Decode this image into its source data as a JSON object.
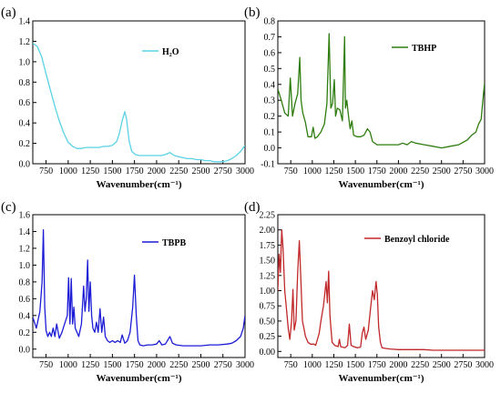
{
  "chart_data": [
    {
      "type": "line",
      "panel_label": "(a)",
      "xlabel": "Wavenumber(cm⁻¹)",
      "ylabel": "",
      "xlim": [
        600,
        3000
      ],
      "ylim": [
        0.0,
        1.4
      ],
      "xticks": [
        750,
        1000,
        1250,
        1500,
        1750,
        2000,
        2250,
        2500,
        2750,
        3000
      ],
      "yticks": [
        0.0,
        0.2,
        0.4,
        0.6,
        0.8,
        1.0,
        1.2,
        1.4
      ],
      "ytick_labels": [
        "0.0",
        "0.2",
        "0.4",
        "0.6",
        "0.8",
        "1.0",
        "1.2",
        "1.4"
      ],
      "legend": "top-right",
      "series": [
        {
          "name": "H₂O",
          "color": "#5bd2e6",
          "x": [
            600,
            650,
            700,
            750,
            800,
            850,
            900,
            950,
            1000,
            1050,
            1100,
            1150,
            1200,
            1250,
            1300,
            1350,
            1400,
            1450,
            1500,
            1550,
            1580,
            1610,
            1640,
            1660,
            1690,
            1720,
            1760,
            1800,
            1850,
            1900,
            1950,
            2000,
            2050,
            2100,
            2150,
            2200,
            2250,
            2300,
            2350,
            2400,
            2450,
            2500,
            2550,
            2600,
            2650,
            2700,
            2750,
            2800,
            2850,
            2900,
            2950,
            3000
          ],
          "y": [
            1.18,
            1.15,
            1.05,
            0.88,
            0.72,
            0.56,
            0.42,
            0.3,
            0.21,
            0.17,
            0.15,
            0.15,
            0.16,
            0.16,
            0.16,
            0.16,
            0.17,
            0.17,
            0.18,
            0.22,
            0.3,
            0.42,
            0.51,
            0.44,
            0.22,
            0.12,
            0.09,
            0.08,
            0.08,
            0.08,
            0.08,
            0.08,
            0.08,
            0.09,
            0.11,
            0.08,
            0.07,
            0.06,
            0.05,
            0.05,
            0.04,
            0.04,
            0.03,
            0.03,
            0.02,
            0.02,
            0.02,
            0.03,
            0.05,
            0.08,
            0.12,
            0.18
          ]
        }
      ]
    },
    {
      "type": "line",
      "panel_label": "(b)",
      "xlabel": "Wavenumber(cm⁻¹)",
      "ylabel": "",
      "xlim": [
        600,
        3000
      ],
      "ylim": [
        -0.1,
        0.8
      ],
      "xticks": [
        750,
        1000,
        1250,
        1500,
        1750,
        2000,
        2250,
        2500,
        2750,
        3000
      ],
      "yticks": [
        -0.1,
        0.0,
        0.1,
        0.2,
        0.3,
        0.4,
        0.5,
        0.6,
        0.7,
        0.8
      ],
      "ytick_labels": [
        "-0.1",
        "0.0",
        "0.1",
        "0.2",
        "0.3",
        "0.4",
        "0.5",
        "0.6",
        "0.7",
        "0.8"
      ],
      "legend": "top-right",
      "series": [
        {
          "name": "TBHP",
          "color": "#2e7d0f",
          "x": [
            600,
            640,
            680,
            720,
            745,
            770,
            800,
            830,
            855,
            870,
            890,
            920,
            950,
            990,
            1010,
            1030,
            1060,
            1100,
            1140,
            1170,
            1195,
            1215,
            1235,
            1255,
            1270,
            1290,
            1320,
            1350,
            1375,
            1385,
            1400,
            1420,
            1440,
            1460,
            1480,
            1520,
            1560,
            1600,
            1640,
            1670,
            1700,
            1750,
            1800,
            1900,
            2000,
            2050,
            2100,
            2150,
            2200,
            2300,
            2400,
            2500,
            2600,
            2700,
            2800,
            2850,
            2900,
            2930,
            2960,
            2980,
            3000
          ],
          "y": [
            0.37,
            0.3,
            0.22,
            0.2,
            0.44,
            0.2,
            0.28,
            0.34,
            0.57,
            0.3,
            0.22,
            0.16,
            0.07,
            0.07,
            0.13,
            0.06,
            0.07,
            0.1,
            0.15,
            0.28,
            0.72,
            0.25,
            0.28,
            0.43,
            0.2,
            0.25,
            0.24,
            0.17,
            0.7,
            0.25,
            0.3,
            0.2,
            0.12,
            0.17,
            0.08,
            0.07,
            0.07,
            0.08,
            0.12,
            0.1,
            0.04,
            0.02,
            0.02,
            0.02,
            0.02,
            0.03,
            0.02,
            0.04,
            0.03,
            0.02,
            0.01,
            0.0,
            0.01,
            0.02,
            0.05,
            0.08,
            0.1,
            0.15,
            0.18,
            0.3,
            0.41
          ]
        }
      ]
    },
    {
      "type": "line",
      "panel_label": "(c)",
      "xlabel": "Wavenumber(cm⁻¹)",
      "ylabel": "",
      "xlim": [
        600,
        3000
      ],
      "ylim": [
        -0.1,
        1.6
      ],
      "xticks": [
        750,
        1000,
        1250,
        1500,
        1750,
        2000,
        2250,
        2500,
        2750,
        3000
      ],
      "yticks": [
        0.0,
        0.2,
        0.4,
        0.6,
        0.8,
        1.0,
        1.2,
        1.4,
        1.6
      ],
      "ytick_labels": [
        "0.0",
        "0.2",
        "0.4",
        "0.6",
        "0.8",
        "1.0",
        "1.2",
        "1.4",
        "1.6"
      ],
      "legend": "top-right",
      "series": [
        {
          "name": "TBPB",
          "color": "#1c1cd6",
          "x": [
            600,
            640,
            680,
            705,
            720,
            735,
            750,
            770,
            790,
            810,
            830,
            850,
            870,
            900,
            930,
            960,
            990,
            1005,
            1020,
            1035,
            1050,
            1065,
            1080,
            1100,
            1120,
            1150,
            1175,
            1190,
            1205,
            1220,
            1235,
            1250,
            1265,
            1280,
            1300,
            1320,
            1340,
            1360,
            1380,
            1400,
            1420,
            1445,
            1470,
            1500,
            1530,
            1560,
            1590,
            1610,
            1640,
            1670,
            1700,
            1730,
            1750,
            1770,
            1790,
            1810,
            1850,
            1900,
            1950,
            2000,
            2030,
            2060,
            2100,
            2150,
            2180,
            2220,
            2300,
            2400,
            2500,
            2600,
            2700,
            2800,
            2850,
            2900,
            2950,
            2980,
            3000
          ],
          "y": [
            0.38,
            0.25,
            0.45,
            0.8,
            1.42,
            0.5,
            0.22,
            0.15,
            0.2,
            0.15,
            0.25,
            0.15,
            0.3,
            0.13,
            0.2,
            0.3,
            0.4,
            0.85,
            0.3,
            0.84,
            0.3,
            0.5,
            0.25,
            0.2,
            0.15,
            0.3,
            0.75,
            0.45,
            0.6,
            1.06,
            0.45,
            0.8,
            0.4,
            0.25,
            0.2,
            0.32,
            0.2,
            0.48,
            0.2,
            0.38,
            0.15,
            0.1,
            0.08,
            0.1,
            0.08,
            0.1,
            0.08,
            0.17,
            0.07,
            0.1,
            0.2,
            0.5,
            0.88,
            0.4,
            0.1,
            0.05,
            0.04,
            0.05,
            0.05,
            0.06,
            0.1,
            0.05,
            0.06,
            0.15,
            0.07,
            0.05,
            0.04,
            0.04,
            0.04,
            0.05,
            0.05,
            0.06,
            0.07,
            0.1,
            0.15,
            0.25,
            0.4
          ]
        }
      ]
    },
    {
      "type": "line",
      "panel_label": "(d)",
      "xlabel": "Wavenumber(cm⁻¹)",
      "ylabel": "",
      "xlim": [
        600,
        3000
      ],
      "ylim": [
        -0.1,
        2.25
      ],
      "xticks": [
        750,
        1000,
        1250,
        1500,
        1750,
        2000,
        2250,
        2500,
        2750,
        3000
      ],
      "yticks": [
        0.0,
        0.25,
        0.5,
        0.75,
        1.0,
        1.25,
        1.5,
        1.75,
        2.0,
        2.25
      ],
      "ytick_labels": [
        "0.00",
        "0.25",
        "0.50",
        "0.75",
        "1.00",
        "1.25",
        "1.50",
        "1.75",
        "2.00",
        "2.25"
      ],
      "legend": "top-right",
      "series": [
        {
          "name": "Benzoyl chloride",
          "color": "#c0282a",
          "x": [
            600,
            615,
            630,
            645,
            660,
            680,
            700,
            720,
            740,
            760,
            775,
            790,
            810,
            830,
            850,
            870,
            885,
            900,
            920,
            950,
            980,
            1000,
            1020,
            1040,
            1060,
            1080,
            1100,
            1130,
            1160,
            1175,
            1190,
            1205,
            1215,
            1230,
            1260,
            1300,
            1315,
            1330,
            1350,
            1380,
            1410,
            1430,
            1450,
            1480,
            1520,
            1560,
            1580,
            1600,
            1620,
            1650,
            1680,
            1700,
            1720,
            1740,
            1755,
            1770,
            1790,
            1810,
            1850,
            1900,
            2000,
            2100,
            2200,
            2300,
            2400,
            2500,
            2600,
            2700,
            2800,
            2900,
            3000
          ],
          "y": [
            1.0,
            1.6,
            1.3,
            2.0,
            1.7,
            1.0,
            0.7,
            0.38,
            0.2,
            0.5,
            1.02,
            0.35,
            0.5,
            1.3,
            1.82,
            1.1,
            0.5,
            0.4,
            0.25,
            0.15,
            0.12,
            0.12,
            0.12,
            0.1,
            0.2,
            0.3,
            0.5,
            0.75,
            1.15,
            0.8,
            1.32,
            0.6,
            0.4,
            0.15,
            0.1,
            0.08,
            0.2,
            0.08,
            0.07,
            0.06,
            0.1,
            0.45,
            0.1,
            0.08,
            0.06,
            0.07,
            0.3,
            0.4,
            0.2,
            0.35,
            0.75,
            1.0,
            0.85,
            1.15,
            0.95,
            0.4,
            0.15,
            0.06,
            0.05,
            0.04,
            0.03,
            0.03,
            0.03,
            0.03,
            0.02,
            0.02,
            0.02,
            0.02,
            0.02,
            0.02,
            0.02
          ]
        }
      ]
    }
  ]
}
